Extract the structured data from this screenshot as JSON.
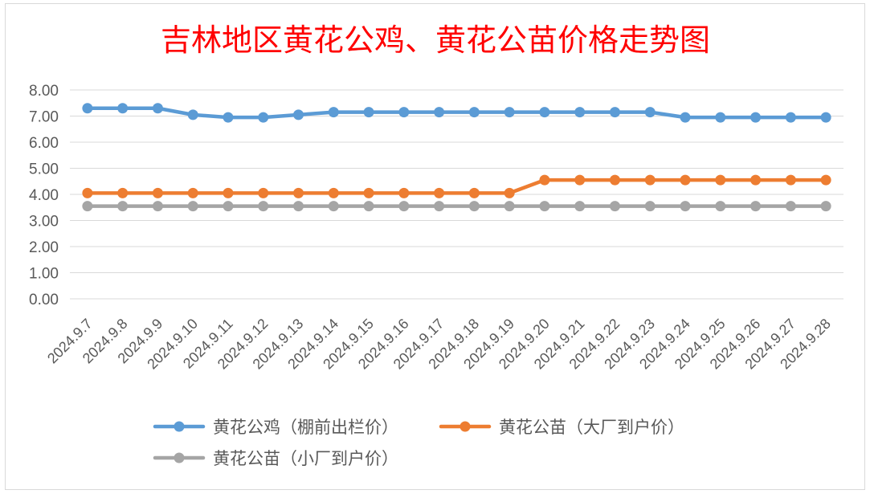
{
  "chart_data": {
    "type": "line",
    "title": "吉林地区黄花公鸡、黄花公苗价格走势图",
    "xlabel": "",
    "ylabel": "",
    "ylim": [
      0,
      8
    ],
    "y_ticks": [
      "0.00",
      "1.00",
      "2.00",
      "3.00",
      "4.00",
      "5.00",
      "6.00",
      "7.00",
      "8.00"
    ],
    "grid": true,
    "legend_position": "bottom",
    "categories": [
      "2024.9.7",
      "2024.9.8",
      "2024.9.9",
      "2024.9.10",
      "2024.9.11",
      "2024.9.12",
      "2024.9.13",
      "2024.9.14",
      "2024.9.15",
      "2024.9.16",
      "2024.9.17",
      "2024.9.18",
      "2024.9.19",
      "2024.9.20",
      "2024.9.21",
      "2024.9.22",
      "2024.9.23",
      "2024.9.24",
      "2024.9.25",
      "2024.9.26",
      "2024.9.27",
      "2024.9.28"
    ],
    "series": [
      {
        "name": "黄花公鸡（棚前出栏价）",
        "color": "#5b9bd5",
        "values": [
          7.3,
          7.3,
          7.3,
          7.05,
          6.95,
          6.95,
          7.05,
          7.15,
          7.15,
          7.15,
          7.15,
          7.15,
          7.15,
          7.15,
          7.15,
          7.15,
          7.15,
          6.95,
          6.95,
          6.95,
          6.95,
          6.95
        ]
      },
      {
        "name": "黄花公苗（大厂到户价）",
        "color": "#ed7d31",
        "values": [
          4.05,
          4.05,
          4.05,
          4.05,
          4.05,
          4.05,
          4.05,
          4.05,
          4.05,
          4.05,
          4.05,
          4.05,
          4.05,
          4.55,
          4.55,
          4.55,
          4.55,
          4.55,
          4.55,
          4.55,
          4.55,
          4.55
        ]
      },
      {
        "name": "黄花公苗（小厂到户价）",
        "color": "#a5a5a5",
        "values": [
          3.55,
          3.55,
          3.55,
          3.55,
          3.55,
          3.55,
          3.55,
          3.55,
          3.55,
          3.55,
          3.55,
          3.55,
          3.55,
          3.55,
          3.55,
          3.55,
          3.55,
          3.55,
          3.55,
          3.55,
          3.55,
          3.55
        ]
      }
    ]
  }
}
